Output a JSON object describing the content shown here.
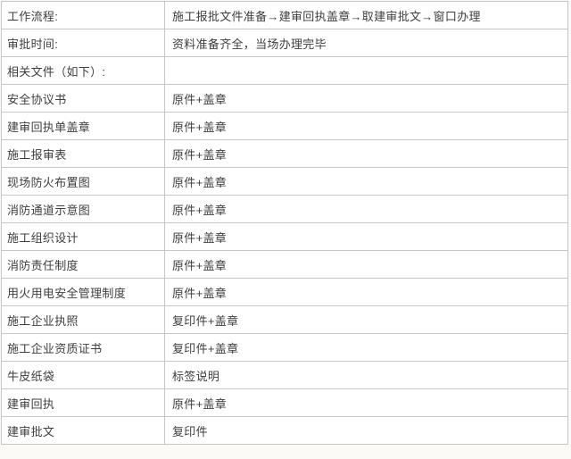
{
  "table": {
    "colors": {
      "outer_border": "#b3b3b3",
      "inner_border": "#c6c6c6",
      "text": "#3e3e3e",
      "background": "#ffffff"
    },
    "rows": [
      {
        "label": "工作流程:",
        "value": "施工报批文件准备→建审回执盖章→取建审批文→窗口办理"
      },
      {
        "label": "审批时间:",
        "value": "资料准备齐全，当场办理完毕"
      },
      {
        "label": "相关文件（如下）:",
        "value": ""
      },
      {
        "label": "安全协议书",
        "value": "原件+盖章"
      },
      {
        "label": "建审回执单盖章",
        "value": "原件+盖章"
      },
      {
        "label": "施工报审表",
        "value": "原件+盖章"
      },
      {
        "label": "现场防火布置图",
        "value": "原件+盖章"
      },
      {
        "label": "消防通道示意图",
        "value": "原件+盖章"
      },
      {
        "label": "施工组织设计",
        "value": "原件+盖章"
      },
      {
        "label": "消防责任制度",
        "value": "原件+盖章"
      },
      {
        "label": "用火用电安全管理制度",
        "value": "原件+盖章"
      },
      {
        "label": "施工企业执照",
        "value": "复印件+盖章"
      },
      {
        "label": "施工企业资质证书",
        "value": "复印件+盖章"
      },
      {
        "label": "牛皮纸袋",
        "value": "标签说明"
      },
      {
        "label": "建审回执",
        "value": "原件+盖章"
      },
      {
        "label": "建审批文",
        "value": "复印件"
      }
    ]
  }
}
